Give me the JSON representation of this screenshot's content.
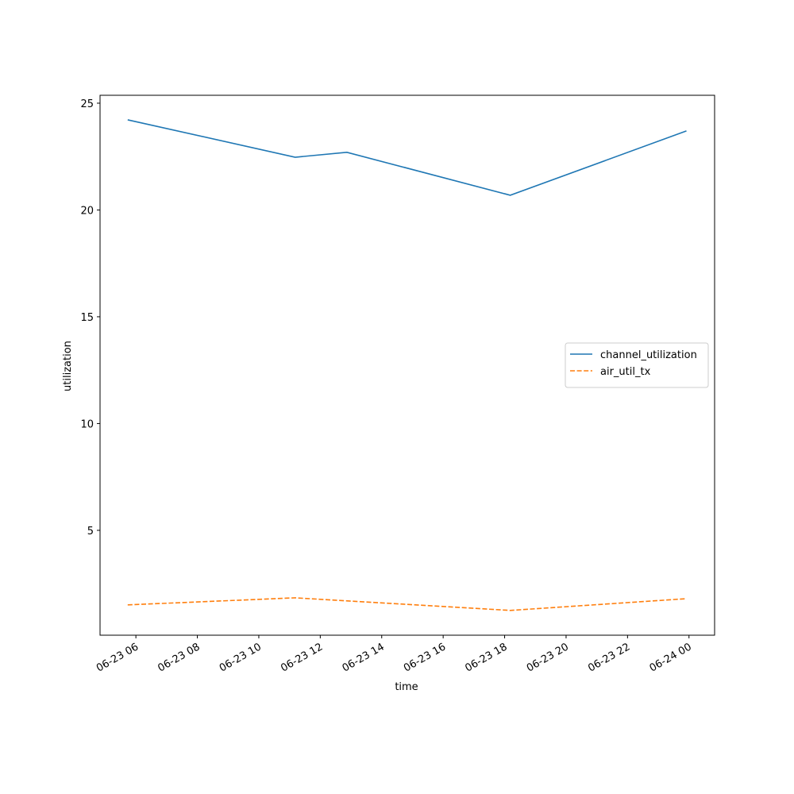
{
  "chart_data": {
    "type": "line",
    "xlabel": "time",
    "ylabel": "utilization",
    "xlim": [
      "06-23 04:50",
      "06-24 00:50"
    ],
    "xticks": [
      "06-23 06",
      "06-23 08",
      "06-23 10",
      "06-23 12",
      "06-23 14",
      "06-23 16",
      "06-23 18",
      "06-23 20",
      "06-23 22",
      "06-24 00"
    ],
    "ylim": [
      0.09,
      25.37
    ],
    "yticks": [
      5,
      10,
      15,
      20,
      25
    ],
    "legend": "center right",
    "series": [
      {
        "name": "channel_utilization",
        "color": "#1f77b4",
        "dash": "solid",
        "x": [
          "06-23 05:44",
          "06-23 11:11",
          "06-23 12:52",
          "06-23 18:11",
          "06-23 23:55"
        ],
        "values": [
          24.22,
          22.47,
          22.7,
          20.69,
          23.7
        ]
      },
      {
        "name": "air_util_tx",
        "color": "#ff7f0e",
        "dash": "dashed",
        "x": [
          "06-23 05:44",
          "06-23 11:11",
          "06-23 18:11",
          "06-23 23:55"
        ],
        "values": [
          1.51,
          1.84,
          1.25,
          1.8
        ]
      }
    ]
  }
}
